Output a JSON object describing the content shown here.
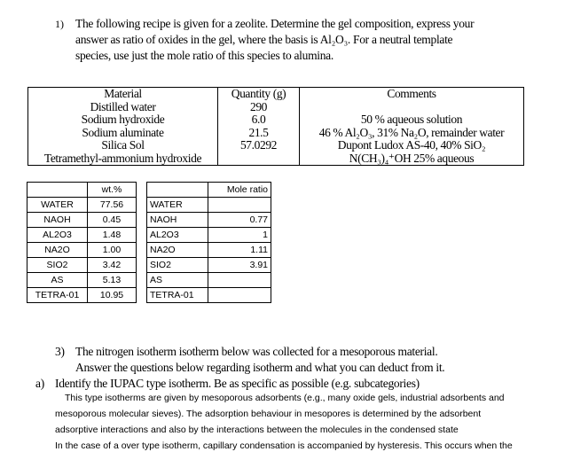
{
  "question1": {
    "number": "1)",
    "lines": [
      "The following recipe is given for a zeolite. Determine the gel composition, express your",
      "answer as ratio of oxides in the gel, where the basis is Al₂O₃. For a neutral template",
      "species, use just the mole ratio of this species to alumina."
    ]
  },
  "recipe_table": {
    "headers": [
      "Material",
      "Quantity (g)",
      "Comments"
    ],
    "rows": [
      [
        "Distilled water",
        "290",
        ""
      ],
      [
        "Sodium hydroxide",
        "6.0",
        "50 % aqueous solution"
      ],
      [
        "Sodium aluminate",
        "21.5",
        "46 % Al₂O₃, 31% Na₂O, remainder water"
      ],
      [
        "Silica Sol",
        "57.0292",
        "Dupont Ludox AS-40, 40% SiO₂"
      ],
      [
        "Tetramethyl-ammonium hydroxide",
        "",
        "N(CH₃)₄⁺OH 25% aqueous"
      ]
    ]
  },
  "wt_table": {
    "headers": [
      "",
      "wt.%"
    ],
    "rows": [
      [
        "WATER",
        "77.56"
      ],
      [
        "NAOH",
        "0.45"
      ],
      [
        "AL2O3",
        "1.48"
      ],
      [
        "NA2O",
        "1.00"
      ],
      [
        "SIO2",
        "3.42"
      ],
      [
        "AS",
        "5.13"
      ],
      [
        "TETRA-01",
        "10.95"
      ]
    ]
  },
  "mole_table": {
    "headers": [
      "",
      "Mole ratio"
    ],
    "rows": [
      [
        "WATER",
        ""
      ],
      [
        "NAOH",
        "0.77"
      ],
      [
        "AL2O3",
        "1"
      ],
      [
        "NA2O",
        "1.11"
      ],
      [
        "SIO2",
        "3.91"
      ],
      [
        "AS",
        ""
      ],
      [
        "TETRA-01",
        ""
      ]
    ]
  },
  "question3": {
    "number": "3)",
    "line1": "The nitrogen isotherm isotherm below was collected for a mesoporous material.",
    "line2": "Answer the questions below regarding isotherm and what you can deduct from it.",
    "part_a_label": "a)",
    "part_a": "Identify the IUPAC type isotherm. Be as specific as possible (e.g. subcategories)",
    "answer_lines": [
      "This type  isotherms are given by mesoporous adsorbents (e.g., many oxide gels, industrial adsorbents and",
      "mesoporous molecular sieves). The adsorption behaviour in mesopores is determined by the adsorbent",
      "adsorptive interactions and also by the interactions between the molecules in the condensed state",
      "In the case of a over type isotherm, capillary condensation is accompanied by hysteresis. This occurs when the"
    ]
  }
}
